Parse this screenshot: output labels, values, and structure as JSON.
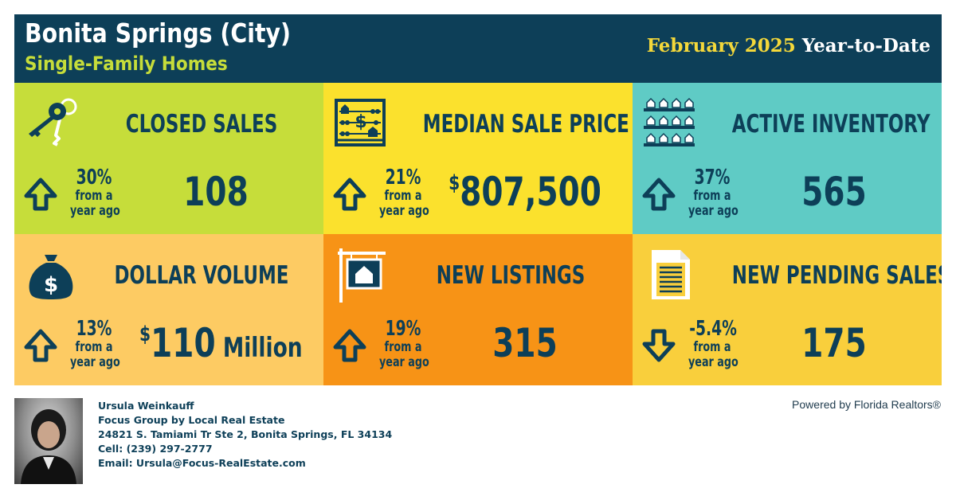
{
  "header": {
    "city": "Bonita Springs (City)",
    "property_type": "Single-Family Homes",
    "period_month": "February 2025",
    "period_label": "Year-to-Date"
  },
  "tiles": [
    {
      "title": "CLOSED SALES",
      "change": "30%",
      "change_text_1": "from a",
      "change_text_2": "year ago",
      "direction": "up",
      "value": "108",
      "value_prefix": "",
      "value_unit": "",
      "bg": "#c6dd3a",
      "icon": "keys-icon"
    },
    {
      "title": "MEDIAN SALE PRICE",
      "change": "21%",
      "change_text_1": "from a",
      "change_text_2": "year ago",
      "direction": "up",
      "value": "807,500",
      "value_prefix": "$",
      "value_unit": "",
      "bg": "#fbe12d",
      "icon": "abacus-icon"
    },
    {
      "title": "ACTIVE INVENTORY",
      "change": "37%",
      "change_text_1": "from a",
      "change_text_2": "year ago",
      "direction": "up",
      "value": "565",
      "value_prefix": "",
      "value_unit": "",
      "bg": "#5fcbc5",
      "icon": "houses-shelf-icon"
    },
    {
      "title": "DOLLAR VOLUME",
      "change": "13%",
      "change_text_1": "from a",
      "change_text_2": "year ago",
      "direction": "up",
      "value": "110",
      "value_prefix": "$",
      "value_unit": " Million",
      "bg": "#fdcb63",
      "icon": "money-bag-icon"
    },
    {
      "title": "NEW LISTINGS",
      "change": "19%",
      "change_text_1": "from a",
      "change_text_2": "year ago",
      "direction": "up",
      "value": "315",
      "value_prefix": "",
      "value_unit": "",
      "bg": "#f79316",
      "icon": "house-sign-icon"
    },
    {
      "title": "NEW PENDING SALES",
      "change": "-5.4%",
      "change_text_1": "from a",
      "change_text_2": "year ago",
      "direction": "down",
      "value": "175",
      "value_prefix": "",
      "value_unit": "",
      "bg": "#f9cf3c",
      "icon": "document-icon"
    }
  ],
  "agent": {
    "name": "Ursula Weinkauff",
    "company": "Focus Group by Local Real Estate",
    "address": "24821 S. Tamiami Tr Ste 2, Bonita Springs, FL 34134",
    "cell": "Cell: (239) 297-2777",
    "email": "Email: Ursula@Focus-RealEstate.com"
  },
  "powered_by": "Powered by Florida Realtors®",
  "colors": {
    "navy": "#0d3f58",
    "lime": "#c6dd3a",
    "yellow_text": "#f4d83a"
  }
}
